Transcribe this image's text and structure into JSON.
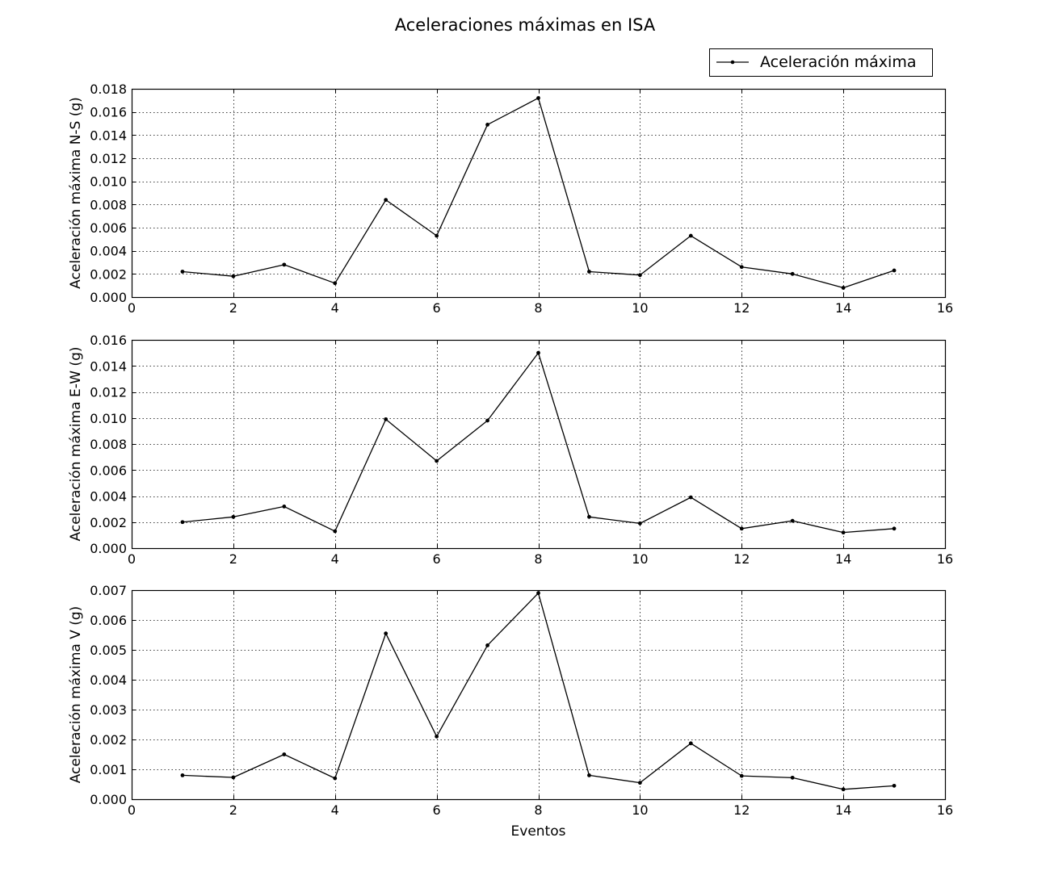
{
  "title": "Aceleraciones máximas en ISA",
  "legend": {
    "label": "Aceleración máxima",
    "location": "top-right"
  },
  "colors": {
    "line": "#000000",
    "grid": "#000000",
    "background": "#ffffff"
  },
  "chart_data": [
    {
      "type": "line",
      "ylabel": "Aceleración máxima N-S (g)",
      "xlabel": "",
      "xlim": [
        0,
        16
      ],
      "ylim": [
        0,
        0.018
      ],
      "xticks": [
        "0",
        "2",
        "4",
        "6",
        "8",
        "10",
        "12",
        "14",
        "16"
      ],
      "yticks": [
        "0.000",
        "0.002",
        "0.004",
        "0.006",
        "0.008",
        "0.010",
        "0.012",
        "0.014",
        "0.016",
        "0.018"
      ],
      "grid": true,
      "marker": "point",
      "series": [
        {
          "name": "Aceleración máxima",
          "x": [
            1,
            2,
            3,
            4,
            5,
            6,
            7,
            8,
            9,
            10,
            11,
            12,
            13,
            14,
            15
          ],
          "values": [
            0.0022,
            0.0018,
            0.0028,
            0.0012,
            0.0084,
            0.0053,
            0.0149,
            0.0172,
            0.0022,
            0.0019,
            0.0053,
            0.0026,
            0.002,
            0.0008,
            0.0023
          ]
        }
      ]
    },
    {
      "type": "line",
      "ylabel": "Aceleración máxima E-W (g)",
      "xlabel": "",
      "xlim": [
        0,
        16
      ],
      "ylim": [
        0,
        0.016
      ],
      "xticks": [
        "0",
        "2",
        "4",
        "6",
        "8",
        "10",
        "12",
        "14",
        "16"
      ],
      "yticks": [
        "0.000",
        "0.002",
        "0.004",
        "0.006",
        "0.008",
        "0.010",
        "0.012",
        "0.014",
        "0.016"
      ],
      "grid": true,
      "marker": "point",
      "series": [
        {
          "name": "Aceleración máxima",
          "x": [
            1,
            2,
            3,
            4,
            5,
            6,
            7,
            8,
            9,
            10,
            11,
            12,
            13,
            14,
            15
          ],
          "values": [
            0.002,
            0.0024,
            0.0032,
            0.0013,
            0.0099,
            0.0067,
            0.0098,
            0.015,
            0.0024,
            0.0019,
            0.0039,
            0.0015,
            0.0021,
            0.0012,
            0.0015
          ]
        }
      ]
    },
    {
      "type": "line",
      "ylabel": "Aceleración máxima V (g)",
      "xlabel": "Eventos",
      "xlim": [
        0,
        16
      ],
      "ylim": [
        0,
        0.007
      ],
      "xticks": [
        "0",
        "2",
        "4",
        "6",
        "8",
        "10",
        "12",
        "14",
        "16"
      ],
      "yticks": [
        "0.000",
        "0.001",
        "0.002",
        "0.003",
        "0.004",
        "0.005",
        "0.006",
        "0.007"
      ],
      "grid": true,
      "marker": "point",
      "series": [
        {
          "name": "Aceleración máxima",
          "x": [
            1,
            2,
            3,
            4,
            5,
            6,
            7,
            8,
            9,
            10,
            11,
            12,
            13,
            14,
            15
          ],
          "values": [
            0.0008,
            0.00073,
            0.0015,
            0.0007,
            0.00555,
            0.0021,
            0.00515,
            0.0069,
            0.0008,
            0.00055,
            0.00187,
            0.00078,
            0.00072,
            0.00033,
            0.00045
          ]
        }
      ]
    }
  ]
}
